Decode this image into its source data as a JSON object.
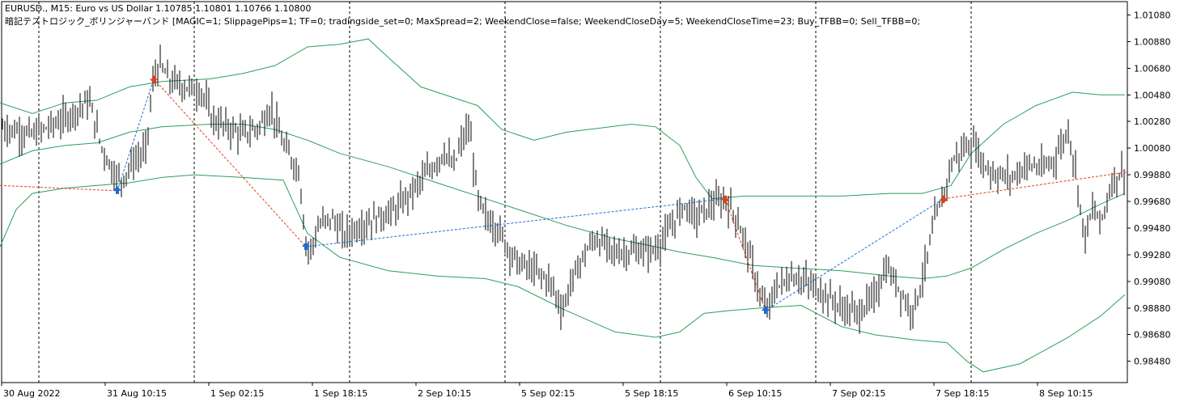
{
  "header": {
    "line1": "EURUSD., M15:  Euro vs US Dollar  1.10785 1.10801 1.10766 1.10800",
    "line2": "暗記テストロジック_ボリンジャーバンド [MAGIC=1; SlippagePips=1; TF=0; tradingside_set=0; MaxSpread=2; WeekendClose=false; WeekendCloseDay=5; WeekendCloseTime=23; Buy_TFBB=0; Sell_TFBB=0;"
  },
  "chart_data": {
    "type": "candlestick",
    "symbol": "EURUSD.",
    "timeframe": "M15",
    "ylim": [
      0.9832,
      1.0118
    ],
    "y_ticks": [
      "1.01080",
      "1.00880",
      "1.00680",
      "1.00480",
      "1.00280",
      "1.00080",
      "0.99880",
      "0.99680",
      "0.99480",
      "0.99280",
      "0.99080",
      "0.98880",
      "0.98680",
      "0.98480"
    ],
    "x_ticks": [
      "30 Aug 2022",
      "31 Aug 10:15",
      "1 Sep 02:15",
      "1 Sep 18:15",
      "2 Sep 10:15",
      "5 Sep 02:15",
      "5 Sep 18:15",
      "6 Sep 10:15",
      "7 Sep 02:15",
      "7 Sep 18:15",
      "8 Sep 10:15"
    ],
    "period_separators": 7,
    "price_path": [
      [
        0,
        1.0024
      ],
      [
        40,
        1.0018
      ],
      [
        80,
        1.003
      ],
      [
        110,
        1.0044
      ],
      [
        125,
        1.001
      ],
      [
        140,
        0.999
      ],
      [
        150,
        0.9984
      ],
      [
        165,
        0.9998
      ],
      [
        180,
        1.0006
      ],
      [
        190,
        1.0062
      ],
      [
        198,
        1.007
      ],
      [
        210,
        1.0058
      ],
      [
        230,
        1.0054
      ],
      [
        250,
        1.005
      ],
      [
        262,
        1.003
      ],
      [
        280,
        1.0024
      ],
      [
        300,
        1.0018
      ],
      [
        320,
        1.0024
      ],
      [
        335,
        1.0038
      ],
      [
        350,
        1.001
      ],
      [
        370,
        0.999
      ],
      [
        377,
        0.994
      ],
      [
        382,
        0.993
      ],
      [
        395,
        0.995
      ],
      [
        410,
        0.9956
      ],
      [
        425,
        0.9942
      ],
      [
        440,
        0.9948
      ],
      [
        460,
        0.9954
      ],
      [
        490,
        0.9962
      ],
      [
        515,
        0.998
      ],
      [
        535,
        0.9994
      ],
      [
        550,
        1.0006
      ],
      [
        560,
        0.9992
      ],
      [
        570,
        1.0012
      ],
      [
        580,
        1.0024
      ],
      [
        590,
        0.997
      ],
      [
        600,
        0.9956
      ],
      [
        615,
        0.9948
      ],
      [
        625,
        0.9936
      ],
      [
        640,
        0.9922
      ],
      [
        660,
        0.9916
      ],
      [
        680,
        0.9908
      ],
      [
        695,
        0.9886
      ],
      [
        705,
        0.9906
      ],
      [
        720,
        0.9926
      ],
      [
        735,
        0.994
      ],
      [
        760,
        0.993
      ],
      [
        790,
        0.993
      ],
      [
        810,
        0.9932
      ],
      [
        825,
        0.9944
      ],
      [
        845,
        0.9966
      ],
      [
        860,
        0.9956
      ],
      [
        880,
        0.9966
      ],
      [
        897,
        0.9968
      ],
      [
        910,
        0.9956
      ],
      [
        925,
        0.993
      ],
      [
        940,
        0.9896
      ],
      [
        948,
        0.9886
      ],
      [
        960,
        0.9904
      ],
      [
        980,
        0.9912
      ],
      [
        1000,
        0.9906
      ],
      [
        1020,
        0.9898
      ],
      [
        1040,
        0.9888
      ],
      [
        1060,
        0.9884
      ],
      [
        1080,
        0.9896
      ],
      [
        1095,
        0.9918
      ],
      [
        1110,
        0.9904
      ],
      [
        1125,
        0.9886
      ],
      [
        1135,
        0.9898
      ],
      [
        1145,
        0.9924
      ],
      [
        1155,
        0.9954
      ],
      [
        1165,
        0.997
      ],
      [
        1175,
        0.9996
      ],
      [
        1190,
        1.0008
      ],
      [
        1205,
        1.001
      ],
      [
        1215,
        0.9996
      ],
      [
        1230,
        0.9988
      ],
      [
        1250,
        0.9986
      ],
      [
        1270,
        0.9996
      ],
      [
        1290,
        0.9992
      ],
      [
        1305,
        1.0002
      ],
      [
        1320,
        1.0022
      ],
      [
        1330,
        0.9988
      ],
      [
        1340,
        0.994
      ],
      [
        1350,
        0.9962
      ],
      [
        1360,
        0.9952
      ],
      [
        1375,
        0.9984
      ],
      [
        1390,
        0.9992
      ]
    ],
    "bollinger_bands": {
      "color": "#2e9e5b",
      "upper": [
        [
          0,
          1.0042
        ],
        [
          40,
          1.0034
        ],
        [
          80,
          1.0042
        ],
        [
          120,
          1.0044
        ],
        [
          160,
          1.0054
        ],
        [
          200,
          1.0058
        ],
        [
          260,
          1.006
        ],
        [
          300,
          1.0064
        ],
        [
          340,
          1.007
        ],
        [
          380,
          1.0084
        ],
        [
          420,
          1.0086
        ],
        [
          455,
          1.009
        ],
        [
          480,
          1.0076
        ],
        [
          520,
          1.0054
        ],
        [
          560,
          1.0046
        ],
        [
          590,
          1.004
        ],
        [
          620,
          1.0022
        ],
        [
          660,
          1.0014
        ],
        [
          700,
          1.002
        ],
        [
          740,
          1.0023
        ],
        [
          780,
          1.0026
        ],
        [
          810,
          1.0024
        ],
        [
          840,
          1.001
        ],
        [
          860,
          0.9986
        ],
        [
          880,
          0.997
        ],
        [
          920,
          0.9972
        ],
        [
          980,
          0.9972
        ],
        [
          1040,
          0.9972
        ],
        [
          1100,
          0.9974
        ],
        [
          1140,
          0.9974
        ],
        [
          1175,
          0.998
        ],
        [
          1200,
          1.0004
        ],
        [
          1240,
          1.0026
        ],
        [
          1280,
          1.004
        ],
        [
          1325,
          1.005
        ],
        [
          1360,
          1.0048
        ],
        [
          1390,
          1.0048
        ]
      ],
      "middle": [
        [
          0,
          0.9996
        ],
        [
          40,
          1.0006
        ],
        [
          80,
          1.001
        ],
        [
          120,
          1.0012
        ],
        [
          160,
          1.002
        ],
        [
          200,
          1.0024
        ],
        [
          260,
          1.0026
        ],
        [
          300,
          1.0026
        ],
        [
          340,
          1.0022
        ],
        [
          380,
          1.0014
        ],
        [
          420,
          1.0004
        ],
        [
          480,
          0.9994
        ],
        [
          540,
          0.9982
        ],
        [
          600,
          0.997
        ],
        [
          640,
          0.9962
        ],
        [
          700,
          0.995
        ],
        [
          760,
          0.994
        ],
        [
          810,
          0.9934
        ],
        [
          840,
          0.993
        ],
        [
          880,
          0.9926
        ],
        [
          930,
          0.992
        ],
        [
          980,
          0.9918
        ],
        [
          1040,
          0.9916
        ],
        [
          1100,
          0.9912
        ],
        [
          1140,
          0.991
        ],
        [
          1170,
          0.9912
        ],
        [
          1200,
          0.9918
        ],
        [
          1240,
          0.9932
        ],
        [
          1280,
          0.9944
        ],
        [
          1320,
          0.9954
        ],
        [
          1360,
          0.9966
        ],
        [
          1390,
          0.9974
        ]
      ],
      "lower": [
        [
          0,
          0.9934
        ],
        [
          20,
          0.9962
        ],
        [
          40,
          0.9974
        ],
        [
          80,
          0.9978
        ],
        [
          120,
          0.998
        ],
        [
          160,
          0.9982
        ],
        [
          200,
          0.9986
        ],
        [
          240,
          0.9988
        ],
        [
          300,
          0.9986
        ],
        [
          350,
          0.9984
        ],
        [
          380,
          0.9944
        ],
        [
          420,
          0.9926
        ],
        [
          480,
          0.9916
        ],
        [
          540,
          0.9912
        ],
        [
          600,
          0.991
        ],
        [
          640,
          0.9904
        ],
        [
          700,
          0.9886
        ],
        [
          760,
          0.987
        ],
        [
          810,
          0.9866
        ],
        [
          840,
          0.987
        ],
        [
          870,
          0.9884
        ],
        [
          900,
          0.9886
        ],
        [
          940,
          0.9888
        ],
        [
          990,
          0.989
        ],
        [
          1040,
          0.9874
        ],
        [
          1080,
          0.9868
        ],
        [
          1130,
          0.9864
        ],
        [
          1170,
          0.9862
        ],
        [
          1195,
          0.9848
        ],
        [
          1215,
          0.984
        ],
        [
          1260,
          0.9846
        ],
        [
          1320,
          0.9866
        ],
        [
          1360,
          0.9882
        ],
        [
          1390,
          0.9898
        ]
      ]
    },
    "trades": [
      {
        "type": "buy",
        "x": 145,
        "price": 0.9976,
        "color": "#1e6bd6"
      },
      {
        "type": "sell",
        "x": 190,
        "price": 1.006,
        "color": "#e0401a"
      },
      {
        "type": "buy",
        "x": 378,
        "price": 0.9934,
        "color": "#1e6bd6"
      },
      {
        "type": "sell",
        "x": 896,
        "price": 0.997,
        "color": "#e0401a"
      },
      {
        "type": "buy",
        "x": 946,
        "price": 0.9886,
        "color": "#1e6bd6"
      },
      {
        "type": "sell",
        "x": 1166,
        "price": 0.997,
        "color": "#e0401a"
      }
    ],
    "trade_lines": [
      {
        "from": [
          0,
          0.998
        ],
        "to": [
          145,
          0.9976
        ],
        "color": "#e0401a"
      },
      {
        "from": [
          145,
          0.9976
        ],
        "to": [
          190,
          1.006
        ],
        "color": "#1e6bd6"
      },
      {
        "from": [
          190,
          1.006
        ],
        "to": [
          378,
          0.9934
        ],
        "color": "#e0401a"
      },
      {
        "from": [
          378,
          0.9934
        ],
        "to": [
          896,
          0.997
        ],
        "color": "#1e6bd6"
      },
      {
        "from": [
          896,
          0.997
        ],
        "to": [
          946,
          0.9886
        ],
        "color": "#e0401a"
      },
      {
        "from": [
          946,
          0.9886
        ],
        "to": [
          1166,
          0.997
        ],
        "color": "#1e6bd6"
      },
      {
        "from": [
          1166,
          0.997
        ],
        "to": [
          1392,
          0.999
        ],
        "color": "#e0401a"
      }
    ]
  }
}
